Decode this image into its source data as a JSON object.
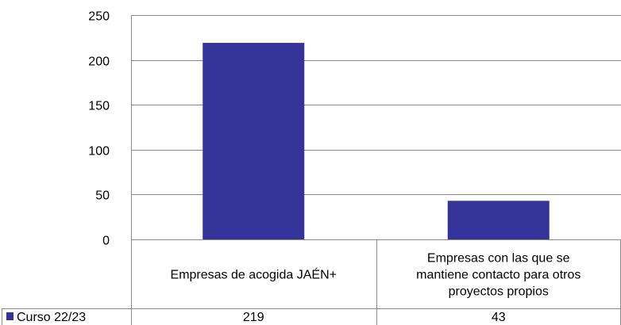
{
  "chart_data": {
    "type": "bar",
    "categories": [
      [
        "Empresas de acogida JAÉN+"
      ],
      [
        "Empresas con las que se",
        "mantiene contacto para otros",
        "proyectos propios"
      ]
    ],
    "series": [
      {
        "name": "Curso 22/23",
        "values": [
          219,
          43
        ],
        "color": "#333399"
      }
    ],
    "ylim": [
      0,
      250
    ],
    "yticks": [
      0,
      50,
      100,
      150,
      200,
      250
    ],
    "grid": true,
    "legend": "data-table",
    "data_table": true
  }
}
